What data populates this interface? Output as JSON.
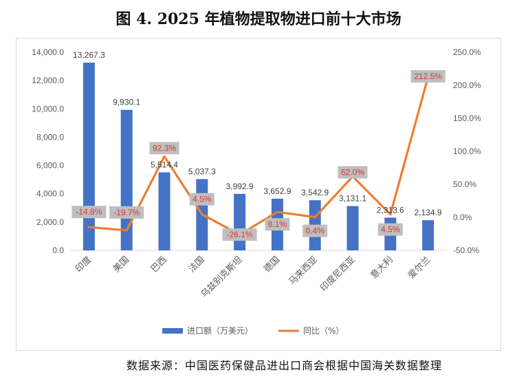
{
  "title": "图 4. 2025 年植物提取物进口前十大市场",
  "source": "数据来源：中国医药保健品进出口商会根据中国海关数据整理",
  "colors": {
    "bar": "#4472C4",
    "line": "#ED7D31",
    "label_box": "#BFBFBF",
    "pct_text": "#E03030"
  },
  "chart_data": {
    "type": "bar+line",
    "categories": [
      "印度",
      "美国",
      "巴西",
      "法国",
      "乌兹别克斯坦",
      "德国",
      "马来西亚",
      "印度尼西亚",
      "意大利",
      "爱尔兰"
    ],
    "series": [
      {
        "name": "进口额（万美元）",
        "type": "bar",
        "axis": "left",
        "values": [
          13267.3,
          9930.1,
          5514.4,
          5037.3,
          3992.9,
          3652.9,
          3542.9,
          3131.1,
          2313.6,
          2134.9
        ],
        "labels": [
          "13,267.3",
          "9,930.1",
          "5,514.4",
          "5,037.3",
          "3,992.9",
          "3,652.9",
          "3,542.9",
          "3,131.1",
          "2,313.6",
          "2,134.9"
        ]
      },
      {
        "name": "同比（%）",
        "type": "line",
        "axis": "right",
        "values": [
          -14.8,
          -19.7,
          92.3,
          4.5,
          -26.1,
          8.1,
          0.4,
          62.0,
          4.5,
          212.5
        ],
        "labels": [
          "-14.8%",
          "-19.7%",
          "92.3%",
          "4.5%",
          "-26.1%",
          "8.1%",
          "0.4%",
          "62.0%",
          "4.5%",
          "212.5%"
        ]
      }
    ],
    "y_left": {
      "min": 0,
      "max": 14000,
      "step": 2000,
      "ticks": [
        "0.0",
        "2,000.0",
        "4,000.0",
        "6,000.0",
        "8,000.0",
        "10,000.0",
        "12,000.0",
        "14,000.0"
      ]
    },
    "y_right": {
      "min": -50,
      "max": 250,
      "step": 50,
      "ticks": [
        "-50.0%",
        "0.0%",
        "50.0%",
        "100.0%",
        "150.0%",
        "200.0%",
        "250.0%"
      ]
    },
    "legend": [
      "进口额（万美元）",
      "同比（%）"
    ],
    "legend_position": "bottom",
    "grid": false
  }
}
